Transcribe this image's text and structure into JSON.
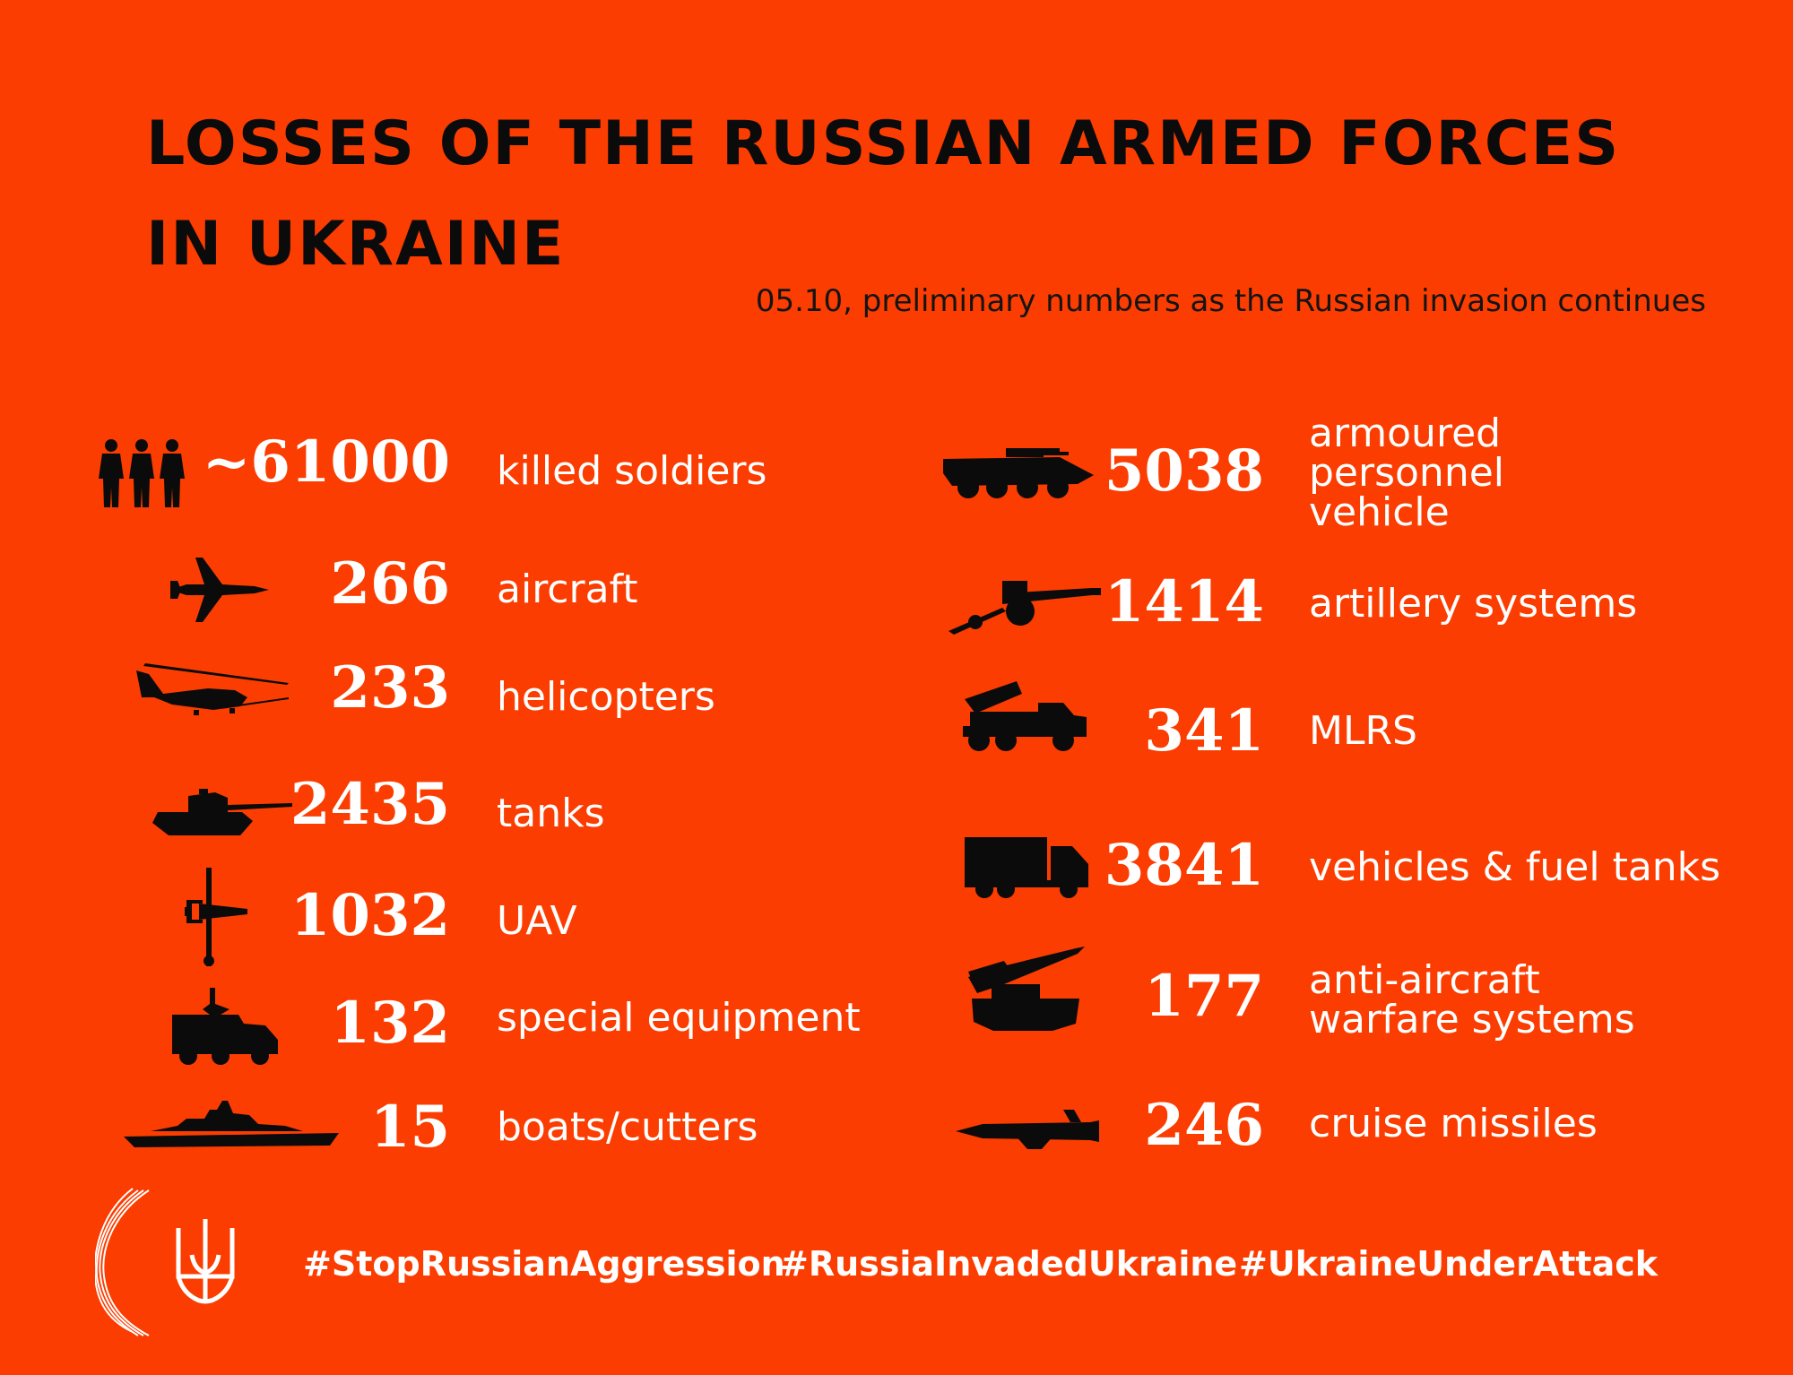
{
  "header": {
    "title_line1": "LOSSES OF THE RUSSIAN ARMED FORCES",
    "title_line2": "IN UKRAINE",
    "subtitle": "05.10, preliminary numbers as the Russian invasion continues"
  },
  "left": [
    {
      "icon": "soldiers-icon",
      "value": "~61000",
      "label": "killed soldiers"
    },
    {
      "icon": "aircraft-icon",
      "value": "266",
      "label": "aircraft"
    },
    {
      "icon": "helicopter-icon",
      "value": "233",
      "label": "helicopters"
    },
    {
      "icon": "tank-icon",
      "value": "2435",
      "label": "tanks"
    },
    {
      "icon": "uav-icon",
      "value": "1032",
      "label": "UAV"
    },
    {
      "icon": "special-vehicle-icon",
      "value": "132",
      "label": "special equipment"
    },
    {
      "icon": "boat-icon",
      "value": "15",
      "label": "boats/cutters"
    }
  ],
  "right": [
    {
      "icon": "apc-icon",
      "value": "5038",
      "label": "armoured\npersonnel\nvehicle"
    },
    {
      "icon": "artillery-icon",
      "value": "1414",
      "label": "artillery systems"
    },
    {
      "icon": "mlrs-icon",
      "value": "341",
      "label": "MLRS"
    },
    {
      "icon": "truck-icon",
      "value": "3841",
      "label": "vehicles & fuel tanks"
    },
    {
      "icon": "anti-aircraft-icon",
      "value": "177",
      "label": "anti-aircraft\nwarfare systems"
    },
    {
      "icon": "cruise-missile-icon",
      "value": "246",
      "label": "cruise missiles"
    }
  ],
  "footer": {
    "hashtags": [
      "#StopRussianAggression",
      "#RussiaInvadedUkraine",
      "#UkraineUnderAttack"
    ]
  },
  "colors": {
    "background": "#FB3D01",
    "title": "#0b0b0b",
    "text": "#ffffff",
    "icon": "#0b0b0b"
  }
}
